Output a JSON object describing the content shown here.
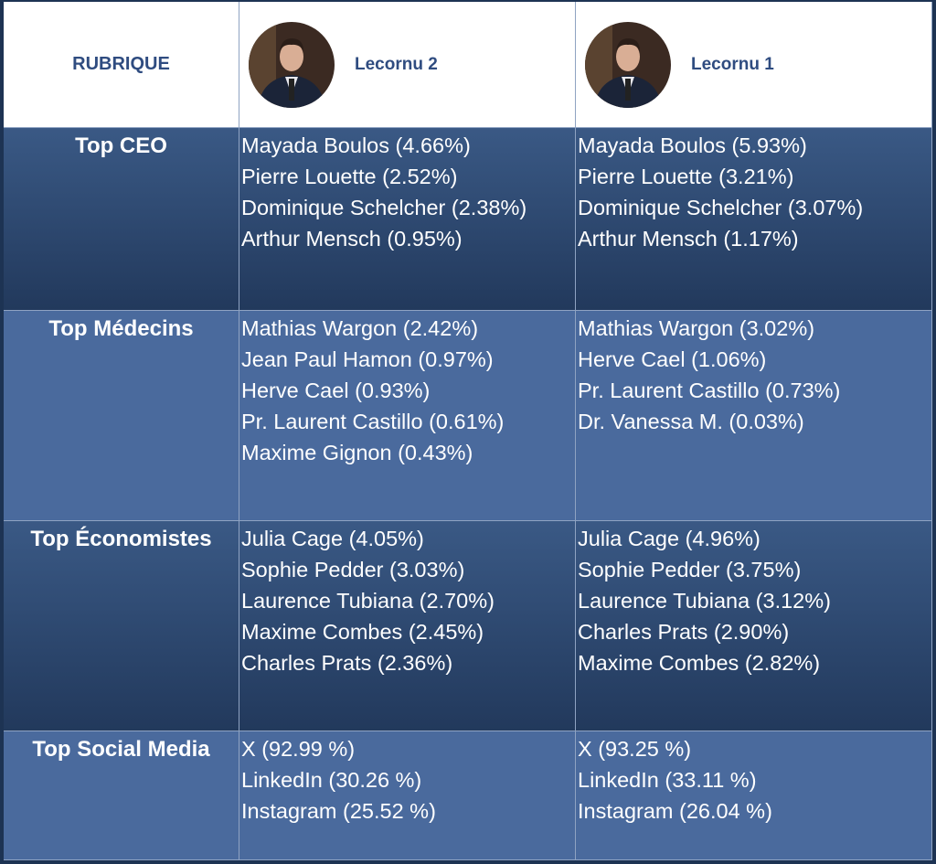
{
  "header": {
    "rubrique": "RUBRIQUE",
    "columns": [
      "Lecornu 2",
      "Lecornu 1"
    ]
  },
  "rows": [
    {
      "label": "Top CEO",
      "cells": [
        [
          "Mayada Boulos (4.66%)",
          "Pierre Louette (2.52%)",
          "Dominique Schelcher (2.38%)",
          "Arthur Mensch (0.95%)"
        ],
        [
          "Mayada Boulos (5.93%)",
          "Pierre Louette (3.21%)",
          "Dominique Schelcher (3.07%)",
          "Arthur Mensch (1.17%)"
        ]
      ]
    },
    {
      "label": "Top Médecins",
      "cells": [
        [
          "Mathias Wargon (2.42%)",
          "Jean Paul Hamon (0.97%)",
          "Herve Cael (0.93%)",
          "Pr. Laurent Castillo (0.61%)",
          "Maxime Gignon (0.43%)"
        ],
        [
          "Mathias Wargon (3.02%)",
          "Herve Cael (1.06%)",
          "Pr. Laurent Castillo (0.73%)",
          "Dr. Vanessa M. (0.03%)"
        ]
      ]
    },
    {
      "label": "Top Économistes",
      "cells": [
        [
          "Julia Cage (4.05%)",
          "Sophie Pedder (3.03%)",
          "Laurence Tubiana (2.70%)",
          "Maxime Combes (2.45%)",
          "Charles Prats (2.36%)"
        ],
        [
          "Julia Cage (4.96%)",
          "Sophie Pedder (3.75%)",
          "Laurence Tubiana (3.12%)",
          "Charles Prats (2.90%)",
          "Maxime Combes (2.82%)"
        ]
      ]
    },
    {
      "label": "Top Social Media",
      "cells": [
        [
          "X (92.99 %)",
          "LinkedIn (30.26 %)",
          "Instagram (25.52 %)"
        ],
        [
          "X (93.25 %)",
          "LinkedIn (33.11 %)",
          "Instagram (26.04 %)"
        ]
      ]
    }
  ]
}
